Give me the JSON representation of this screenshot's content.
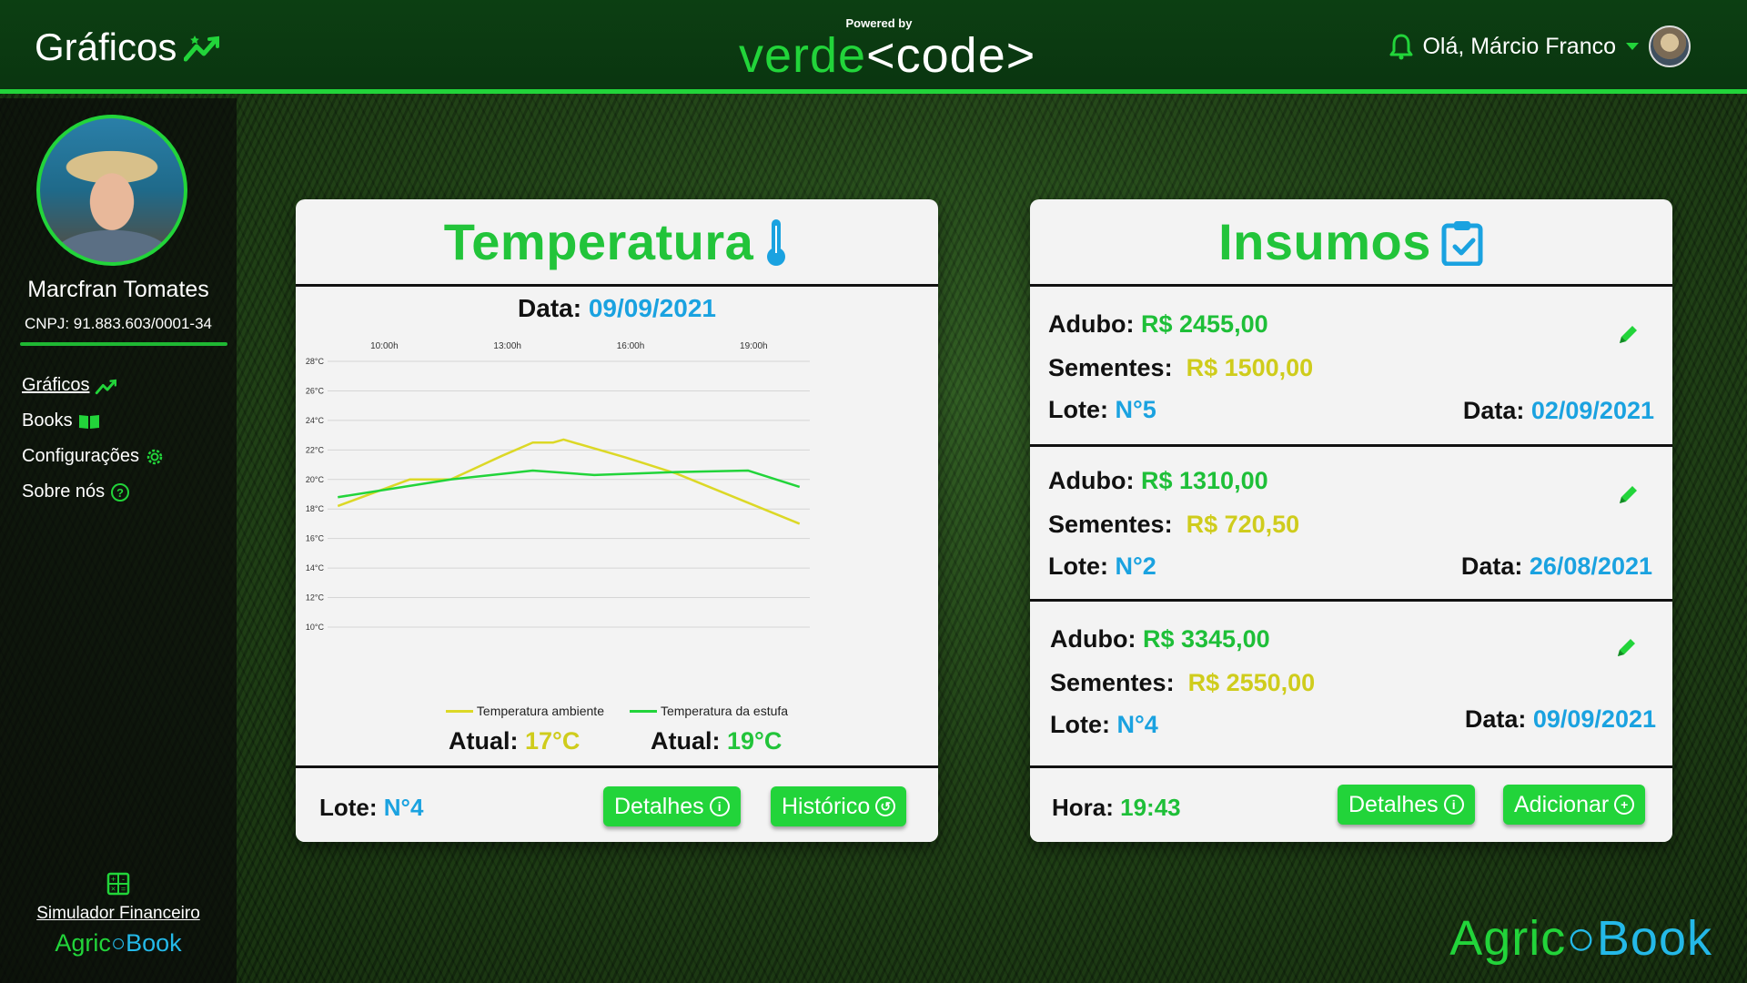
{
  "header": {
    "title": "Gráficos",
    "brand_powered": "Powered by",
    "brand_verde": "verde",
    "brand_code": "<code>",
    "greeting": "Olá, Márcio Franco"
  },
  "sidebar": {
    "profile_name": "Marcfran Tomates",
    "cnpj": "CNPJ: 91.883.603/0001-34",
    "nav": [
      {
        "label": "Gráficos"
      },
      {
        "label": "Books"
      },
      {
        "label": "Configurações"
      },
      {
        "label": "Sobre nós"
      }
    ],
    "simulator_label": "Simulador Financeiro",
    "logo_a": "Agric",
    "logo_b": "Book"
  },
  "temperature_card": {
    "title": "Temperatura",
    "date_label": "Data:",
    "date_value": "09/09/2021",
    "atual_label_1": "Atual:",
    "atual_value_1": "17°C",
    "atual_label_2": "Atual:",
    "atual_value_2": "19°C",
    "lote_label": "Lote:",
    "lote_value": "N°4",
    "details_button": "Detalhes",
    "history_button": "Histórico"
  },
  "chart_data": {
    "type": "line",
    "x_ticks": [
      "10:00h",
      "13:00h",
      "16:00h",
      "19:00h"
    ],
    "x": [
      9.0,
      10.75,
      11.75,
      13.0,
      13.75,
      14.25,
      14.5,
      16.0,
      17.25,
      20.25
    ],
    "ylim": [
      10,
      28
    ],
    "y_ticks": [
      "10°C",
      "12°C",
      "14°C",
      "16°C",
      "18°C",
      "20°C",
      "22°C",
      "24°C",
      "26°C",
      "28°C"
    ],
    "series": [
      {
        "name": "Temperatura ambiente",
        "color": "#dcd826",
        "x": [
          9.0,
          10.75,
          11.75,
          13.0,
          13.75,
          14.25,
          14.5,
          16.0,
          17.25,
          20.25
        ],
        "values": [
          18.2,
          20.0,
          20.0,
          21.6,
          22.5,
          22.5,
          22.7,
          21.5,
          20.4,
          17.0
        ]
      },
      {
        "name": "Temperatura da estufa",
        "color": "#22d43a",
        "x": [
          9.0,
          11.75,
          13.75,
          15.25,
          17.25,
          19.0,
          20.25
        ],
        "values": [
          18.8,
          20.0,
          20.6,
          20.3,
          20.5,
          20.6,
          19.5
        ]
      }
    ],
    "grid": true,
    "legend_position": "bottom"
  },
  "insumos_card": {
    "title": "Insumos",
    "items": [
      {
        "adubo_label": "Adubo:",
        "adubo": "R$ 2455,00",
        "sementes_label": "Sementes:",
        "sementes": "R$ 1500,00",
        "lote_label": "Lote:",
        "lote": "N°5",
        "data_label": "Data:",
        "data": "02/09/2021"
      },
      {
        "adubo_label": "Adubo:",
        "adubo": "R$ 1310,00",
        "sementes_label": "Sementes:",
        "sementes": "R$ 720,50",
        "lote_label": "Lote:",
        "lote": "N°2",
        "data_label": "Data:",
        "data": "26/08/2021"
      },
      {
        "adubo_label": "Adubo:",
        "adubo": "R$ 3345,00",
        "sementes_label": "Sementes:",
        "sementes": "R$ 2550,00",
        "lote_label": "Lote:",
        "lote": "N°4",
        "data_label": "Data:",
        "data": "09/09/2021"
      }
    ],
    "hora_label": "Hora:",
    "hora_value": "19:43",
    "details_button": "Detalhes",
    "add_button": "Adicionar"
  },
  "footer_logo": {
    "a": "Agric",
    "b": "Book"
  }
}
